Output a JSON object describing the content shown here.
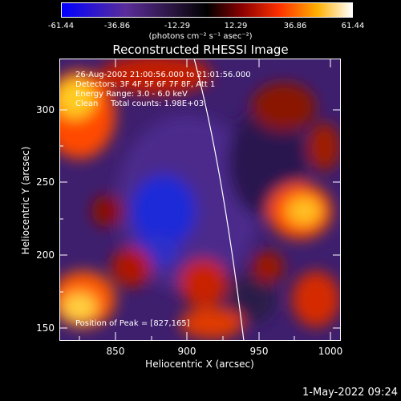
{
  "colorbar": {
    "ticks": [
      "-61.44",
      "-36.86",
      "-12.29",
      "12.29",
      "36.86",
      "61.44"
    ],
    "units": "(photons cm⁻² s⁻¹ asec⁻²)"
  },
  "title": "Reconstructed RHESSI Image",
  "info": {
    "line1": "26-Aug-2002 21:00:56.000 to 21:01:56.000",
    "line2": "Detectors: 3F 4F 5F 6F 7F 8F, Att 1",
    "line3": "Energy Range: 3.0 - 6.0 keV",
    "line4_method": "Clean",
    "line4_counts": "Total counts: 1.98E+03",
    "peak": "Position of Peak = [827,165]"
  },
  "axes": {
    "xlabel": "Heliocentric X (arcsec)",
    "ylabel": "Heliocentric Y (arcsec)",
    "xticks": [
      "850",
      "900",
      "950",
      "1000"
    ],
    "yticks": [
      "150",
      "200",
      "250",
      "300"
    ]
  },
  "timestamp": "1-May-2022 09:24",
  "colors": {
    "min": "#0000ff",
    "neg": "#5a2d9a",
    "mid": "#000000",
    "pos": "#ff4000",
    "max": "#ffffff"
  }
}
